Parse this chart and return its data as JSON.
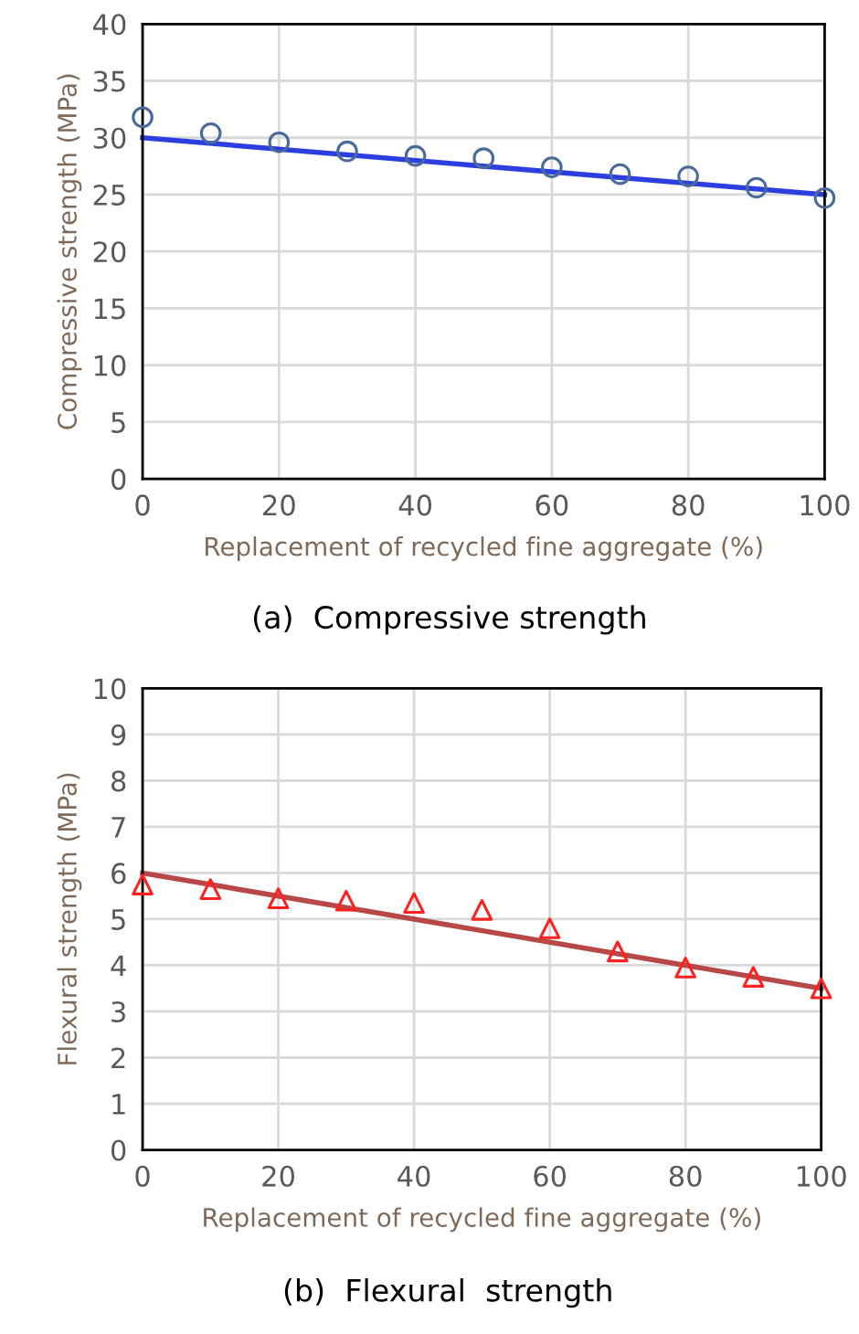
{
  "chart_data": [
    {
      "type": "scatter",
      "xlabel": "Replacement of recycled fine aggregate (%)",
      "ylabel": "Compressive strength (MPa)",
      "annotations": [
        "(a)  Compressive strength"
      ],
      "series": [
        {
          "x": [
            0,
            10,
            20,
            30,
            40,
            50,
            60,
            70,
            80,
            90,
            100
          ],
          "color": "#4a6a9a",
          "marker": "circle",
          "values": [
            31.8,
            30.4,
            29.6,
            28.8,
            28.4,
            28.2,
            27.4,
            26.8,
            26.6,
            25.6,
            24.7
          ]
        },
        {
          "color": "#2b3fe0",
          "x": [
            0,
            100
          ],
          "values": [
            30,
            25
          ],
          "type": "line"
        }
      ],
      "xlim": [
        0,
        100
      ],
      "xticks": [
        0,
        20,
        40,
        60,
        80,
        100
      ],
      "ylim": [
        0,
        40
      ],
      "yticks": [
        0,
        5,
        10,
        15,
        20,
        25,
        30,
        35,
        40
      ],
      "grid": true,
      "legend": false
    },
    {
      "type": "scatter",
      "xlabel": "Replacement of recycled fine aggregate (%)",
      "ylabel": "Flexural strength (MPa)",
      "annotations": [
        "(b)  Flexural  strength"
      ],
      "series": [
        {
          "x": [
            0,
            10,
            20,
            30,
            40,
            50,
            60,
            70,
            80,
            90,
            100
          ],
          "color": "#ff2020",
          "marker": "triangle",
          "values": [
            5.75,
            5.65,
            5.45,
            5.4,
            5.35,
            5.2,
            4.8,
            4.3,
            3.95,
            3.75,
            3.5
          ]
        },
        {
          "type": "line",
          "color": "#b84848",
          "x": [
            0,
            100
          ],
          "values": [
            6,
            3.5
          ]
        }
      ],
      "xlim": [
        0,
        100
      ],
      "xticks": [
        0,
        20,
        40,
        60,
        80,
        100
      ],
      "ylim": [
        0,
        10
      ],
      "yticks": [
        0,
        1,
        2,
        3,
        4,
        5,
        6,
        7,
        8,
        9,
        10
      ],
      "grid": true,
      "legend": false
    }
  ]
}
